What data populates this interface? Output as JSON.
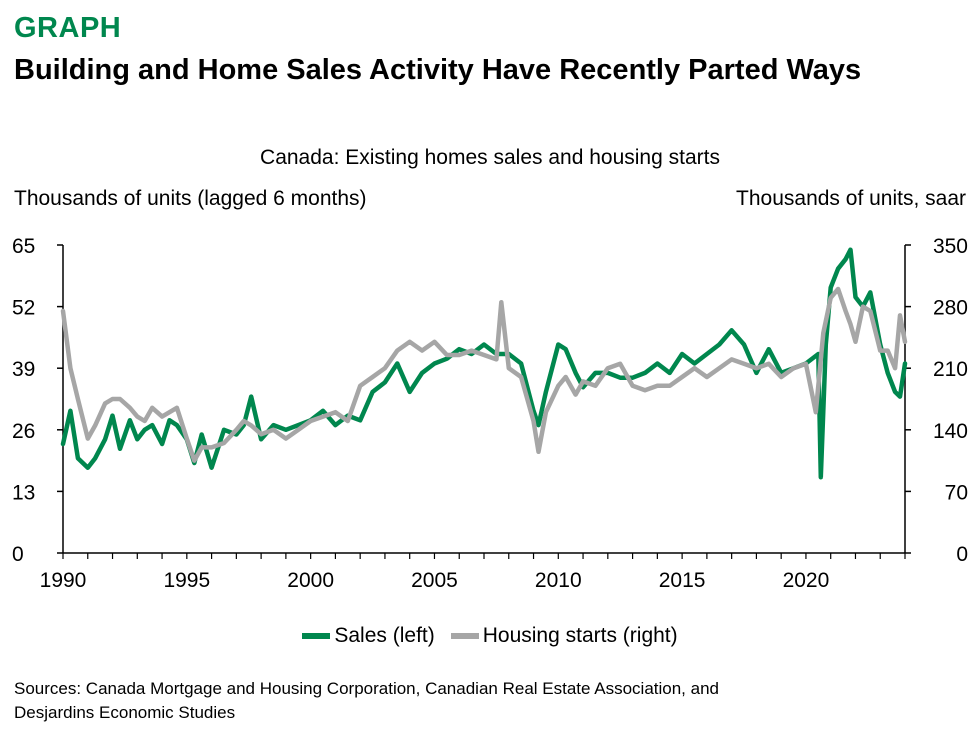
{
  "header": {
    "kicker": "GRAPH",
    "title": "Building and Home Sales Activity Have Recently Parted Ways"
  },
  "colors": {
    "kicker": "#00874E",
    "sales": "#00874E",
    "starts": "#A6A6A6",
    "axis": "#000000"
  },
  "chart_data": {
    "type": "line",
    "title": "Canada: Existing homes sales and housing starts",
    "left_axis_label": "Thousands of units (lagged 6 months)",
    "right_axis_label": "Thousands of units, saar",
    "left_ylim": [
      0,
      65
    ],
    "left_ticks": [
      0,
      13,
      26,
      39,
      52,
      65
    ],
    "right_ylim": [
      0,
      350
    ],
    "right_ticks": [
      0,
      70,
      140,
      210,
      280,
      350
    ],
    "xlim": [
      1990,
      2024
    ],
    "x_ticks": [
      1990,
      1995,
      2000,
      2005,
      2010,
      2015,
      2020
    ],
    "grid": false,
    "legend_position": "bottom",
    "series": [
      {
        "name": "Sales (left)",
        "axis": "left",
        "x": [
          1990.0,
          1990.3,
          1990.6,
          1991.0,
          1991.3,
          1991.7,
          1992.0,
          1992.3,
          1992.7,
          1993.0,
          1993.3,
          1993.6,
          1994.0,
          1994.3,
          1994.6,
          1995.0,
          1995.3,
          1995.6,
          1996.0,
          1996.5,
          1997.0,
          1997.3,
          1997.6,
          1998.0,
          1998.5,
          1999.0,
          1999.5,
          2000.0,
          2000.5,
          2001.0,
          2001.5,
          2002.0,
          2002.5,
          2003.0,
          2003.5,
          2004.0,
          2004.5,
          2005.0,
          2005.5,
          2006.0,
          2006.5,
          2007.0,
          2007.5,
          2008.0,
          2008.5,
          2009.0,
          2009.2,
          2009.5,
          2010.0,
          2010.3,
          2010.7,
          2011.0,
          2011.5,
          2012.0,
          2012.5,
          2013.0,
          2013.5,
          2014.0,
          2014.5,
          2015.0,
          2015.5,
          2016.0,
          2016.5,
          2017.0,
          2017.5,
          2018.0,
          2018.5,
          2019.0,
          2019.5,
          2020.0,
          2020.5,
          2020.6,
          2020.8,
          2021.0,
          2021.3,
          2021.6,
          2021.8,
          2022.0,
          2022.3,
          2022.6,
          2023.0,
          2023.3,
          2023.6,
          2023.8,
          2024.0
        ],
        "values": [
          23,
          30,
          20,
          18,
          20,
          24,
          29,
          22,
          28,
          24,
          26,
          27,
          23,
          28,
          27,
          24,
          19,
          25,
          18,
          26,
          25,
          27,
          33,
          24,
          27,
          26,
          27,
          28,
          30,
          27,
          29,
          28,
          34,
          36,
          40,
          34,
          38,
          40,
          41,
          43,
          42,
          44,
          42,
          42,
          40,
          30,
          27,
          34,
          44,
          43,
          38,
          35,
          38,
          38,
          37,
          37,
          38,
          40,
          38,
          42,
          40,
          42,
          44,
          47,
          44,
          38,
          43,
          38,
          39,
          40,
          42,
          16,
          44,
          56,
          60,
          62,
          64,
          54,
          52,
          55,
          44,
          38,
          34,
          33,
          40
        ]
      },
      {
        "name": "Housing starts (right)",
        "axis": "right",
        "x": [
          1990.0,
          1990.3,
          1990.6,
          1991.0,
          1991.3,
          1991.7,
          1992.0,
          1992.3,
          1992.7,
          1993.0,
          1993.3,
          1993.6,
          1994.0,
          1994.3,
          1994.6,
          1995.0,
          1995.3,
          1995.6,
          1996.0,
          1996.5,
          1997.0,
          1997.3,
          1997.6,
          1998.0,
          1998.5,
          1999.0,
          1999.5,
          2000.0,
          2000.5,
          2001.0,
          2001.5,
          2002.0,
          2002.5,
          2003.0,
          2003.5,
          2004.0,
          2004.5,
          2005.0,
          2005.5,
          2006.0,
          2006.5,
          2007.0,
          2007.5,
          2007.7,
          2008.0,
          2008.5,
          2009.0,
          2009.2,
          2009.5,
          2010.0,
          2010.3,
          2010.7,
          2011.0,
          2011.5,
          2012.0,
          2012.5,
          2013.0,
          2013.5,
          2014.0,
          2014.5,
          2015.0,
          2015.5,
          2016.0,
          2016.5,
          2017.0,
          2017.5,
          2018.0,
          2018.5,
          2019.0,
          2019.5,
          2020.0,
          2020.4,
          2020.7,
          2021.0,
          2021.3,
          2021.6,
          2021.8,
          2022.0,
          2022.3,
          2022.6,
          2023.0,
          2023.3,
          2023.6,
          2023.8,
          2024.0
        ],
        "values": [
          275,
          210,
          175,
          130,
          145,
          170,
          175,
          175,
          165,
          155,
          150,
          165,
          155,
          160,
          165,
          130,
          105,
          120,
          120,
          125,
          140,
          150,
          145,
          135,
          140,
          130,
          140,
          150,
          155,
          160,
          150,
          190,
          200,
          210,
          230,
          240,
          230,
          240,
          225,
          225,
          230,
          225,
          220,
          285,
          210,
          200,
          150,
          115,
          160,
          190,
          200,
          180,
          195,
          190,
          210,
          215,
          190,
          185,
          190,
          190,
          200,
          210,
          200,
          210,
          220,
          215,
          210,
          215,
          200,
          210,
          215,
          160,
          250,
          290,
          300,
          275,
          260,
          240,
          280,
          275,
          230,
          230,
          210,
          270,
          240
        ]
      }
    ]
  },
  "legend": {
    "sales_label": "Sales (left)",
    "starts_label": "Housing starts (right)"
  },
  "sources": {
    "line1": "Sources: Canada Mortgage and Housing Corporation, Canadian Real Estate Association, and",
    "line2": "Desjardins Economic Studies"
  }
}
